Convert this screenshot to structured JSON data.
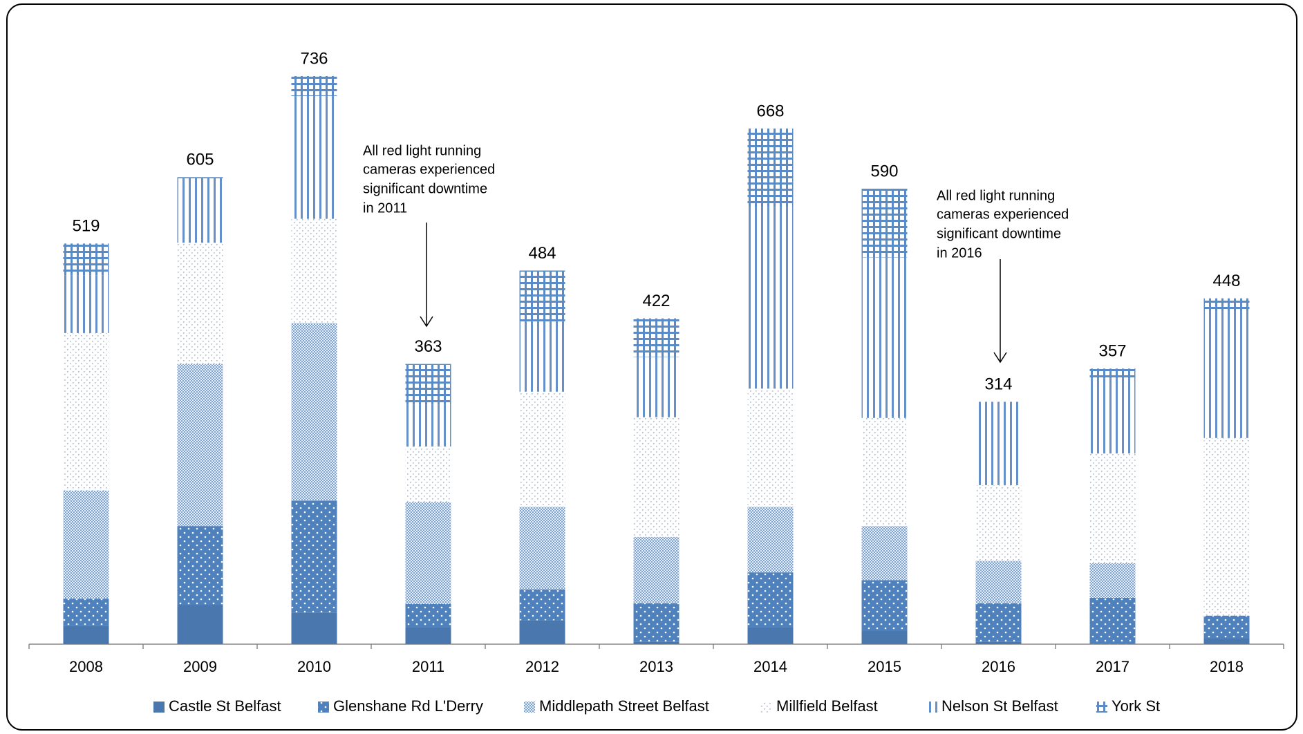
{
  "chart_data": {
    "type": "stacked-bar",
    "categories": [
      "2008",
      "2009",
      "2010",
      "2011",
      "2012",
      "2013",
      "2014",
      "2015",
      "2016",
      "2017",
      "2018"
    ],
    "series": [
      {
        "name": "Castle St Belfast",
        "color": "#4a77ad",
        "values": [
          24,
          51,
          41,
          22,
          31,
          3,
          22,
          17,
          3,
          0,
          8
        ]
      },
      {
        "name": "Glenshane Rd L'Derry",
        "color": "#4f81bd",
        "values": [
          35,
          102,
          145,
          30,
          40,
          50,
          71,
          66,
          50,
          60,
          29
        ]
      },
      {
        "name": "Middlepath Street Belfast",
        "color": "#7fa3d0",
        "values": [
          140,
          210,
          230,
          132,
          107,
          86,
          85,
          70,
          55,
          45,
          0
        ]
      },
      {
        "name": "Millfield Belfast",
        "color": "#9db8dc",
        "values": [
          204,
          157,
          135,
          72,
          149,
          155,
          153,
          140,
          98,
          142,
          230
        ]
      },
      {
        "name": "Nelson St Belfast",
        "color": "#6590c8",
        "values": [
          75,
          83,
          159,
          54,
          91,
          78,
          235,
          208,
          108,
          97,
          164
        ]
      },
      {
        "name": "York St",
        "color": "#5b8bc6",
        "values": [
          41,
          2,
          26,
          53,
          66,
          50,
          102,
          89,
          0,
          13,
          17
        ]
      }
    ],
    "totals": [
      519,
      605,
      736,
      363,
      484,
      422,
      668,
      590,
      314,
      357,
      448
    ],
    "annotations": [
      {
        "lines": [
          "All red light running",
          "cameras experienced",
          "significant downtime",
          "in 2011"
        ]
      },
      {
        "lines": [
          "All red light running",
          "cameras experienced",
          "significant downtime",
          "in 2016"
        ]
      }
    ]
  }
}
